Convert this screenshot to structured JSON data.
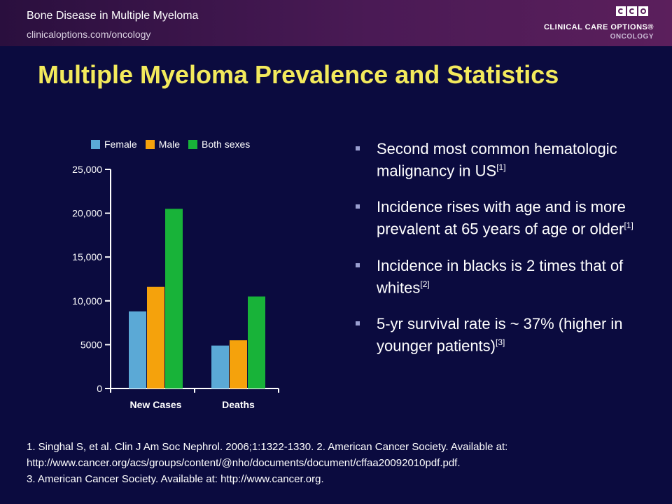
{
  "header": {
    "title": "Bone Disease in Multiple Myeloma",
    "url": "clinicaloptions.com/oncology",
    "logo_line1": "CLINICAL CARE OPTIONS®",
    "logo_line2": "ONCOLOGY"
  },
  "slide": {
    "title": "Multiple Myeloma Prevalence and Statistics"
  },
  "chart_data": {
    "type": "bar",
    "categories": [
      "New Cases",
      "Deaths"
    ],
    "series": [
      {
        "name": "Female",
        "color": "#5ba9d6",
        "values": [
          8800,
          4900
        ]
      },
      {
        "name": "Male",
        "color": "#f5a20c",
        "values": [
          11600,
          5500
        ]
      },
      {
        "name": "Both sexes",
        "color": "#18b339",
        "values": [
          20500,
          10500
        ]
      }
    ],
    "yticks": [
      0,
      5000,
      10000,
      15000,
      20000,
      25000
    ],
    "ytick_labels": [
      "0",
      "5000",
      "10,000",
      "15,000",
      "20,000",
      "25,000"
    ],
    "ylim": [
      0,
      25000
    ],
    "legend_position": "top"
  },
  "bullets": [
    {
      "text": "Second most common hematologic malignancy in US",
      "ref": "[1]"
    },
    {
      "text": "Incidence rises with age and is more prevalent at 65 years of age or older",
      "ref": "[1]"
    },
    {
      "text": "Incidence in blacks is 2 times that of whites",
      "ref": "[2]"
    },
    {
      "text": "5-yr survival rate is ~ 37% (higher in younger patients)",
      "ref": "[3]"
    }
  ],
  "references": {
    "line1": "1. Singhal S, et al. Clin J Am Soc Nephrol. 2006;1:1322-1330. 2. American Cancer Society. Available at:",
    "line2": "http://www.cancer.org/acs/groups/content/@nho/documents/document/cffaa20092010pdf.pdf.",
    "line3": "3. American Cancer Society. Available at: http://www.cancer.org."
  }
}
